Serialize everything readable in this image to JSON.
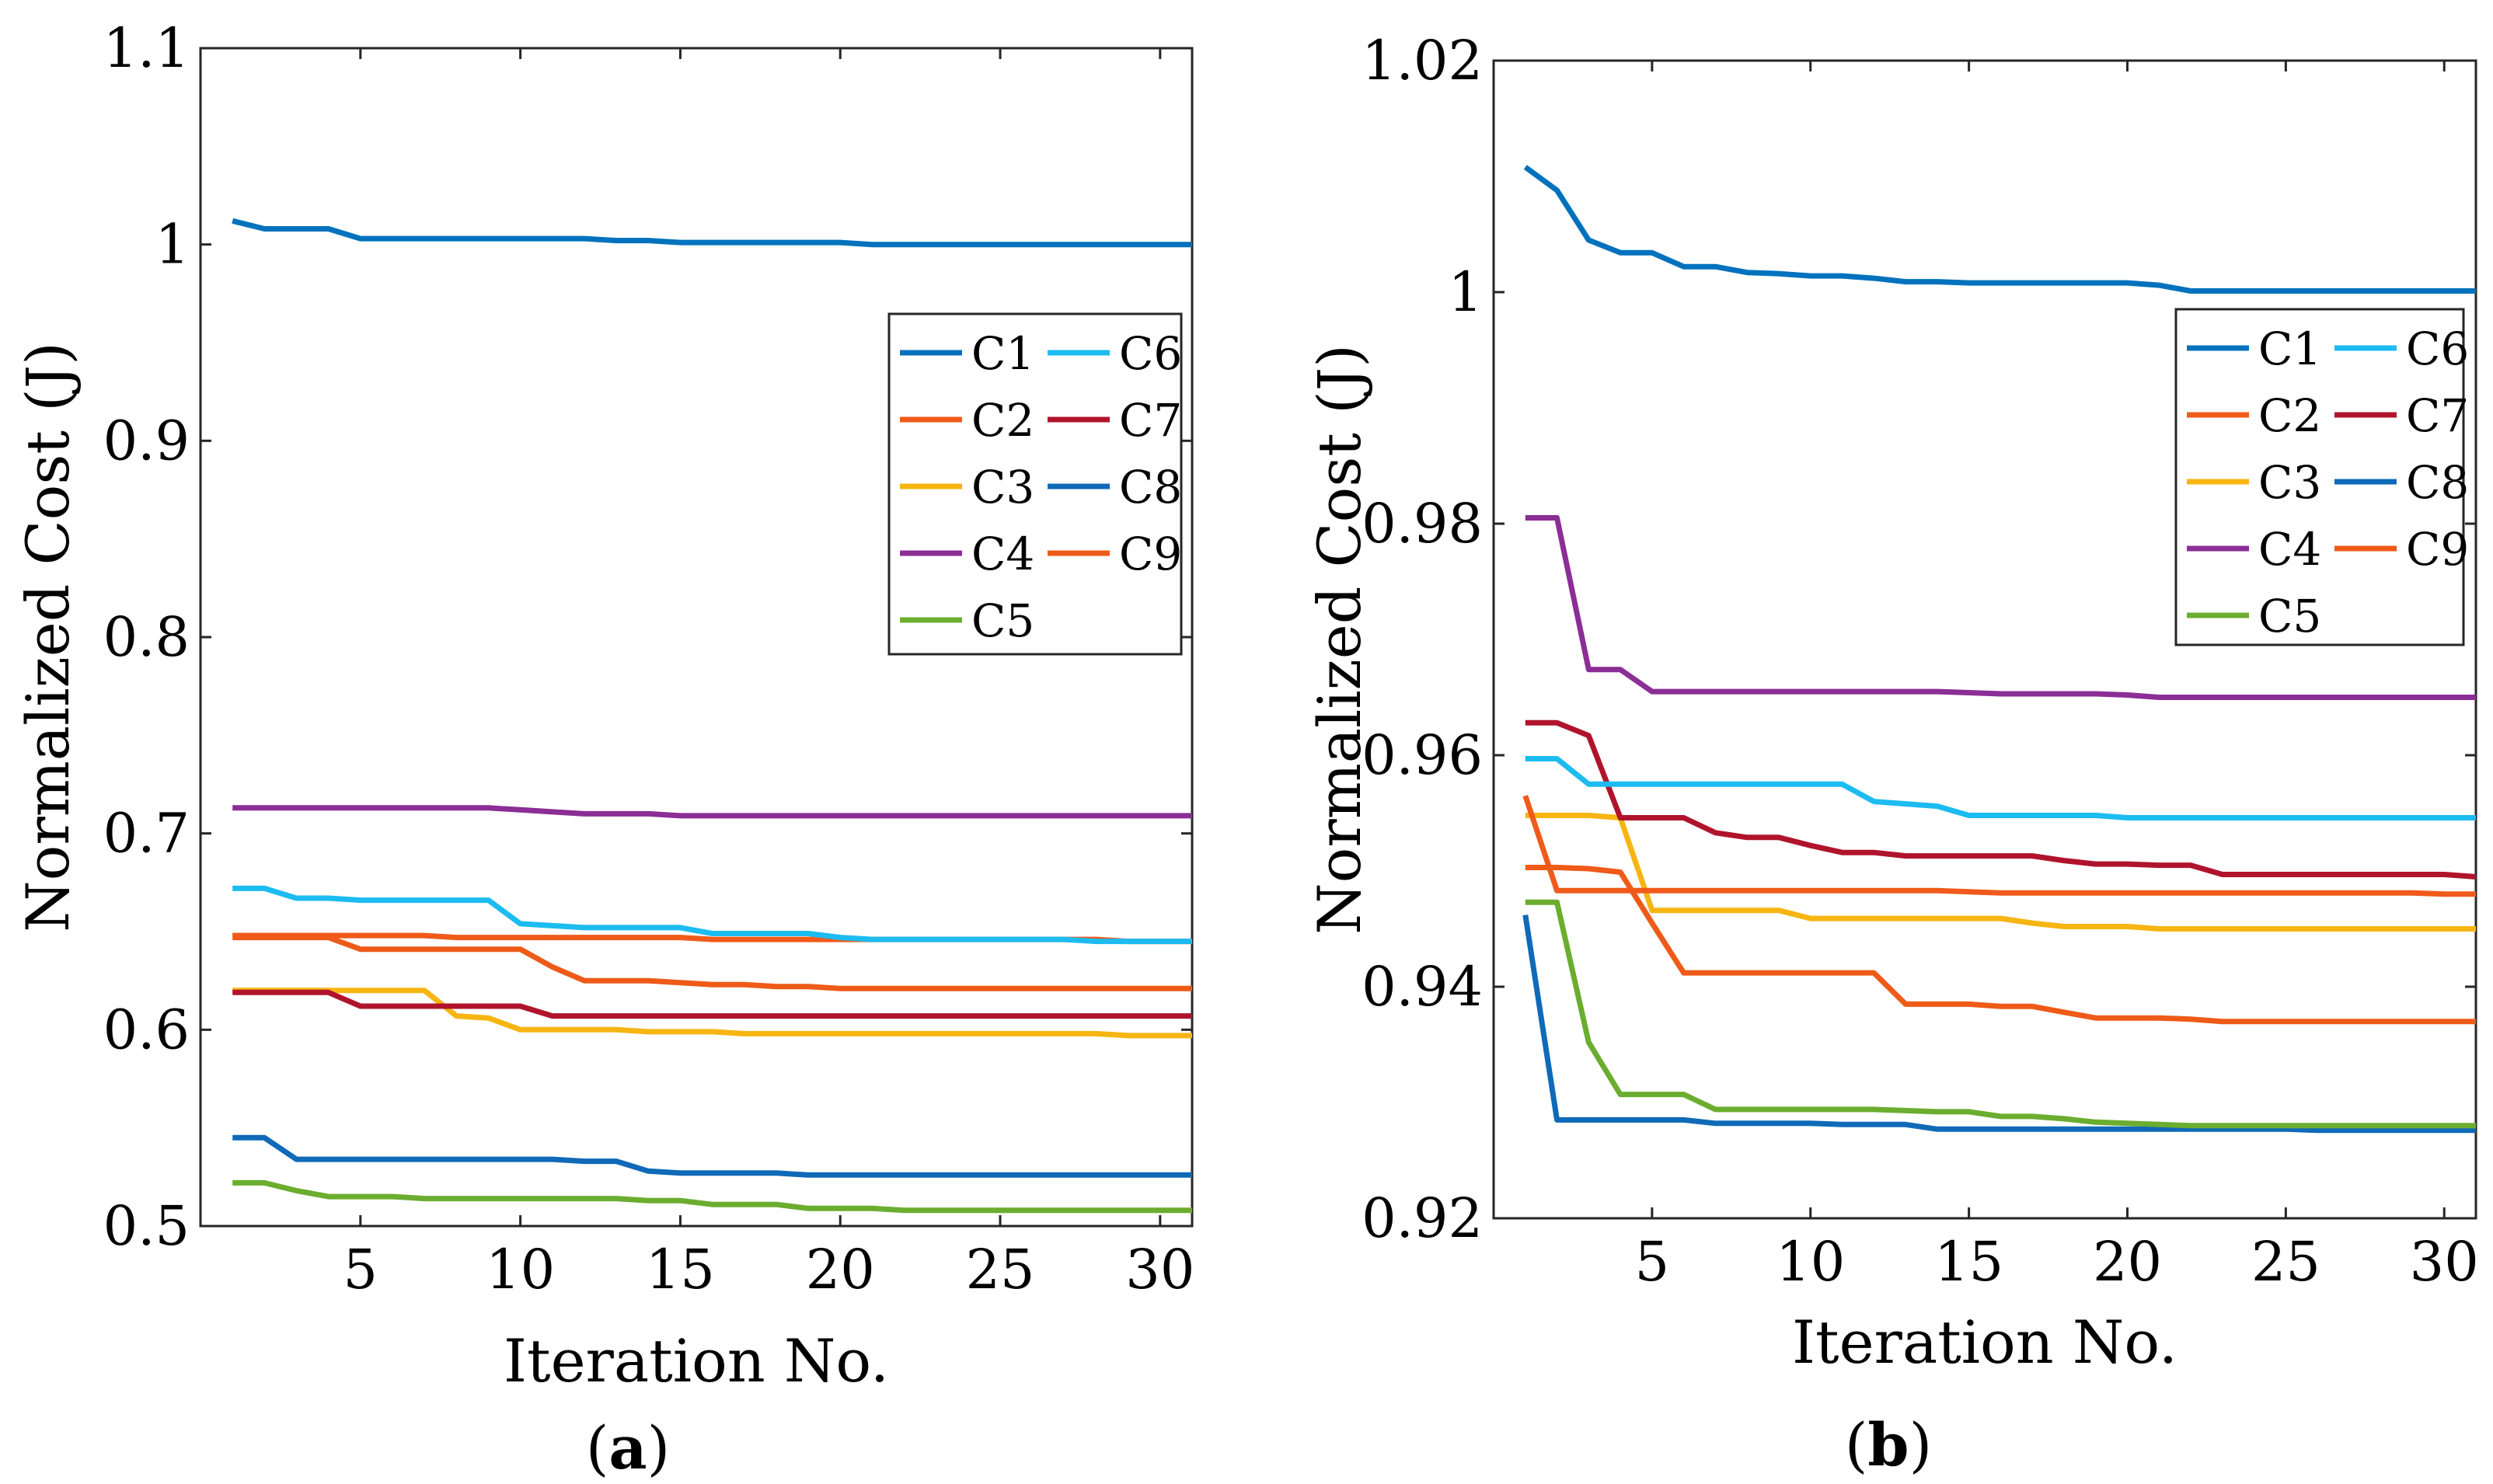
{
  "chart_data": [
    {
      "panel": "a",
      "type": "line",
      "panel_label": "a",
      "xlabel": "Iteration No.",
      "ylabel": "Normalized Cost (J)",
      "xlim": [
        0,
        31
      ],
      "ylim": [
        0.5,
        1.1
      ],
      "xticks": [
        5,
        10,
        15,
        20,
        25,
        30
      ],
      "yticks": [
        0.5,
        0.6,
        0.7,
        0.8,
        0.9,
        1,
        1.1
      ],
      "ytick_labels": [
        "0.5",
        "0.6",
        "0.7",
        "0.8",
        "0.9",
        "1",
        "1.1"
      ],
      "x": [
        1,
        2,
        3,
        4,
        5,
        6,
        7,
        8,
        9,
        10,
        11,
        12,
        13,
        14,
        15,
        16,
        17,
        18,
        19,
        20,
        21,
        22,
        23,
        24,
        25,
        26,
        27,
        28,
        29,
        30,
        31
      ],
      "legend": [
        "C1",
        "C2",
        "C3",
        "C4",
        "C5",
        "C6",
        "C7",
        "C8",
        "C9"
      ],
      "legend_position": "upper-right",
      "series": [
        {
          "name": "C1",
          "color": "#0072bd",
          "values": [
            1.012,
            1.008,
            1.008,
            1.008,
            1.003,
            1.003,
            1.003,
            1.003,
            1.003,
            1.003,
            1.003,
            1.003,
            1.002,
            1.002,
            1.001,
            1.001,
            1.001,
            1.001,
            1.001,
            1.001,
            1.0,
            1.0,
            1.0,
            1.0,
            1.0,
            1.0,
            1.0,
            1.0,
            1.0,
            1.0,
            1.0
          ]
        },
        {
          "name": "C2",
          "color": "#f05a1a",
          "values": [
            0.648,
            0.648,
            0.648,
            0.648,
            0.648,
            0.648,
            0.648,
            0.647,
            0.647,
            0.647,
            0.647,
            0.647,
            0.647,
            0.647,
            0.647,
            0.646,
            0.646,
            0.646,
            0.646,
            0.646,
            0.646,
            0.646,
            0.646,
            0.646,
            0.646,
            0.646,
            0.646,
            0.646,
            0.645,
            0.645,
            0.645
          ]
        },
        {
          "name": "C3",
          "color": "#f7b512",
          "values": [
            0.62,
            0.62,
            0.62,
            0.62,
            0.62,
            0.62,
            0.62,
            0.607,
            0.606,
            0.6,
            0.6,
            0.6,
            0.6,
            0.599,
            0.599,
            0.599,
            0.598,
            0.598,
            0.598,
            0.598,
            0.598,
            0.598,
            0.598,
            0.598,
            0.598,
            0.598,
            0.598,
            0.598,
            0.597,
            0.597,
            0.597
          ]
        },
        {
          "name": "C4",
          "color": "#8b2e96",
          "values": [
            0.713,
            0.713,
            0.713,
            0.713,
            0.713,
            0.713,
            0.713,
            0.713,
            0.713,
            0.712,
            0.711,
            0.71,
            0.71,
            0.71,
            0.709,
            0.709,
            0.709,
            0.709,
            0.709,
            0.709,
            0.709,
            0.709,
            0.709,
            0.709,
            0.709,
            0.709,
            0.709,
            0.709,
            0.709,
            0.709,
            0.709
          ]
        },
        {
          "name": "C5",
          "color": "#6bad2f",
          "values": [
            0.522,
            0.522,
            0.518,
            0.515,
            0.515,
            0.515,
            0.514,
            0.514,
            0.514,
            0.514,
            0.514,
            0.514,
            0.514,
            0.513,
            0.513,
            0.511,
            0.511,
            0.511,
            0.509,
            0.509,
            0.509,
            0.508,
            0.508,
            0.508,
            0.508,
            0.508,
            0.508,
            0.508,
            0.508,
            0.508,
            0.508
          ]
        },
        {
          "name": "C6",
          "color": "#1cbcf0",
          "values": [
            0.672,
            0.672,
            0.667,
            0.667,
            0.666,
            0.666,
            0.666,
            0.666,
            0.666,
            0.654,
            0.653,
            0.652,
            0.652,
            0.652,
            0.652,
            0.649,
            0.649,
            0.649,
            0.649,
            0.647,
            0.646,
            0.646,
            0.646,
            0.646,
            0.646,
            0.646,
            0.646,
            0.645,
            0.645,
            0.645,
            0.645
          ]
        },
        {
          "name": "C7",
          "color": "#b0142c",
          "values": [
            0.619,
            0.619,
            0.619,
            0.619,
            0.612,
            0.612,
            0.612,
            0.612,
            0.612,
            0.612,
            0.607,
            0.607,
            0.607,
            0.607,
            0.607,
            0.607,
            0.607,
            0.607,
            0.607,
            0.607,
            0.607,
            0.607,
            0.607,
            0.607,
            0.607,
            0.607,
            0.607,
            0.607,
            0.607,
            0.607,
            0.607
          ]
        },
        {
          "name": "C8",
          "color": "#0f6ab8",
          "values": [
            0.545,
            0.545,
            0.534,
            0.534,
            0.534,
            0.534,
            0.534,
            0.534,
            0.534,
            0.534,
            0.534,
            0.533,
            0.533,
            0.528,
            0.527,
            0.527,
            0.527,
            0.527,
            0.526,
            0.526,
            0.526,
            0.526,
            0.526,
            0.526,
            0.526,
            0.526,
            0.526,
            0.526,
            0.526,
            0.526,
            0.526
          ]
        },
        {
          "name": "C9",
          "color": "#ee5a18",
          "values": [
            0.647,
            0.647,
            0.647,
            0.647,
            0.641,
            0.641,
            0.641,
            0.641,
            0.641,
            0.641,
            0.632,
            0.625,
            0.625,
            0.625,
            0.624,
            0.623,
            0.623,
            0.622,
            0.622,
            0.621,
            0.621,
            0.621,
            0.621,
            0.621,
            0.621,
            0.621,
            0.621,
            0.621,
            0.621,
            0.621,
            0.621
          ]
        }
      ]
    },
    {
      "panel": "b",
      "type": "line",
      "panel_label": "b",
      "xlabel": "Iteration No.",
      "ylabel": "Normalized Cost (J)",
      "xlim": [
        0,
        31
      ],
      "ylim": [
        0.92,
        1.02
      ],
      "xticks": [
        5,
        10,
        15,
        20,
        25,
        30
      ],
      "yticks": [
        0.92,
        0.94,
        0.96,
        0.98,
        1,
        1.02
      ],
      "ytick_labels": [
        "0.92",
        "0.94",
        "0.96",
        "0.98",
        "1",
        "1.02"
      ],
      "x": [
        1,
        2,
        3,
        4,
        5,
        6,
        7,
        8,
        9,
        10,
        11,
        12,
        13,
        14,
        15,
        16,
        17,
        18,
        19,
        20,
        21,
        22,
        23,
        24,
        25,
        26,
        27,
        28,
        29,
        30,
        31
      ],
      "legend": [
        "C1",
        "C2",
        "C3",
        "C4",
        "C5",
        "C6",
        "C7",
        "C8",
        "C9"
      ],
      "legend_position": "upper-right",
      "series": [
        {
          "name": "C1",
          "color": "#0072bd",
          "values": [
            1.0108,
            1.0088,
            1.0045,
            1.0034,
            1.0034,
            1.0022,
            1.0022,
            1.0017,
            1.0016,
            1.0014,
            1.0014,
            1.0012,
            1.0009,
            1.0009,
            1.0008,
            1.0008,
            1.0008,
            1.0008,
            1.0008,
            1.0008,
            1.0006,
            1.0001,
            1.0001,
            1.0001,
            1.0001,
            1.0001,
            1.0001,
            1.0001,
            1.0001,
            1.0001,
            1.0001
          ]
        },
        {
          "name": "C2",
          "color": "#f05a1a",
          "values": [
            0.9565,
            0.9483,
            0.9483,
            0.9483,
            0.9483,
            0.9483,
            0.9483,
            0.9483,
            0.9483,
            0.9483,
            0.9483,
            0.9483,
            0.9483,
            0.9483,
            0.9482,
            0.9481,
            0.9481,
            0.9481,
            0.9481,
            0.9481,
            0.9481,
            0.9481,
            0.9481,
            0.9481,
            0.9481,
            0.9481,
            0.9481,
            0.9481,
            0.9481,
            0.948,
            0.948
          ]
        },
        {
          "name": "C3",
          "color": "#f7b512",
          "values": [
            0.9548,
            0.9548,
            0.9548,
            0.9546,
            0.9466,
            0.9466,
            0.9466,
            0.9466,
            0.9466,
            0.9459,
            0.9459,
            0.9459,
            0.9459,
            0.9459,
            0.9459,
            0.9459,
            0.9455,
            0.9452,
            0.9452,
            0.9452,
            0.945,
            0.945,
            0.945,
            0.945,
            0.945,
            0.945,
            0.945,
            0.945,
            0.945,
            0.945,
            0.945
          ]
        },
        {
          "name": "C4",
          "color": "#8b2e96",
          "values": [
            0.9805,
            0.9805,
            0.9674,
            0.9674,
            0.9655,
            0.9655,
            0.9655,
            0.9655,
            0.9655,
            0.9655,
            0.9655,
            0.9655,
            0.9655,
            0.9655,
            0.9654,
            0.9653,
            0.9653,
            0.9653,
            0.9653,
            0.9652,
            0.965,
            0.965,
            0.965,
            0.965,
            0.965,
            0.965,
            0.965,
            0.965,
            0.965,
            0.965,
            0.965
          ]
        },
        {
          "name": "C5",
          "color": "#6bad2f",
          "values": [
            0.9473,
            0.9473,
            0.9352,
            0.9307,
            0.9307,
            0.9307,
            0.9294,
            0.9294,
            0.9294,
            0.9294,
            0.9294,
            0.9294,
            0.9293,
            0.9292,
            0.9292,
            0.9288,
            0.9288,
            0.9286,
            0.9283,
            0.9282,
            0.9281,
            0.928,
            0.928,
            0.928,
            0.928,
            0.928,
            0.928,
            0.928,
            0.928,
            0.928,
            0.928
          ]
        },
        {
          "name": "C6",
          "color": "#1cbcf0",
          "values": [
            0.9597,
            0.9597,
            0.9575,
            0.9575,
            0.9575,
            0.9575,
            0.9575,
            0.9575,
            0.9575,
            0.9575,
            0.9575,
            0.956,
            0.9558,
            0.9556,
            0.9548,
            0.9548,
            0.9548,
            0.9548,
            0.9548,
            0.9546,
            0.9546,
            0.9546,
            0.9546,
            0.9546,
            0.9546,
            0.9546,
            0.9546,
            0.9546,
            0.9546,
            0.9546,
            0.9546
          ]
        },
        {
          "name": "C7",
          "color": "#b0142c",
          "values": [
            0.9628,
            0.9628,
            0.9617,
            0.9546,
            0.9546,
            0.9546,
            0.9533,
            0.9529,
            0.9529,
            0.9522,
            0.9516,
            0.9516,
            0.9513,
            0.9513,
            0.9513,
            0.9513,
            0.9513,
            0.9509,
            0.9506,
            0.9506,
            0.9505,
            0.9505,
            0.9497,
            0.9497,
            0.9497,
            0.9497,
            0.9497,
            0.9497,
            0.9497,
            0.9497,
            0.9495
          ]
        },
        {
          "name": "C8",
          "color": "#0f6ab8",
          "values": [
            0.9462,
            0.9285,
            0.9285,
            0.9285,
            0.9285,
            0.9285,
            0.9282,
            0.9282,
            0.9282,
            0.9282,
            0.9281,
            0.9281,
            0.9281,
            0.9277,
            0.9277,
            0.9277,
            0.9277,
            0.9277,
            0.9277,
            0.9277,
            0.9277,
            0.9277,
            0.9277,
            0.9277,
            0.9277,
            0.9276,
            0.9276,
            0.9276,
            0.9276,
            0.9276,
            0.9276
          ]
        },
        {
          "name": "C9",
          "color": "#ee5a18",
          "values": [
            0.9503,
            0.9503,
            0.9502,
            0.9499,
            0.9455,
            0.9412,
            0.9412,
            0.9412,
            0.9412,
            0.9412,
            0.9412,
            0.9412,
            0.9385,
            0.9385,
            0.9385,
            0.9383,
            0.9383,
            0.9378,
            0.9373,
            0.9373,
            0.9373,
            0.9372,
            0.937,
            0.937,
            0.937,
            0.937,
            0.937,
            0.937,
            0.937,
            0.937,
            0.937
          ]
        }
      ]
    }
  ]
}
